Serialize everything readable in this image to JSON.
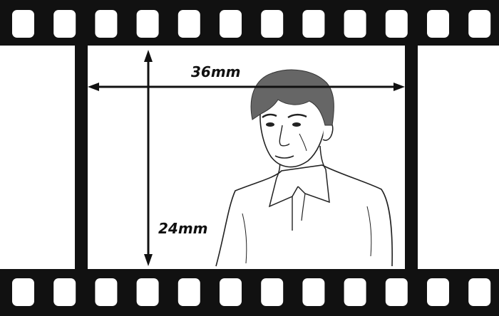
{
  "dimensions": {
    "width_label": "36mm",
    "height_label": "24mm"
  },
  "film": {
    "sprocket_holes_per_strip": 12
  },
  "icons": {
    "figure": "man-portrait-icon",
    "horizontal_arrow": "double-arrow-horizontal-icon",
    "vertical_arrow": "double-arrow-vertical-icon"
  },
  "colors": {
    "film": "#111111",
    "background": "#ffffff",
    "hair": "#666666",
    "line": "#111111"
  }
}
